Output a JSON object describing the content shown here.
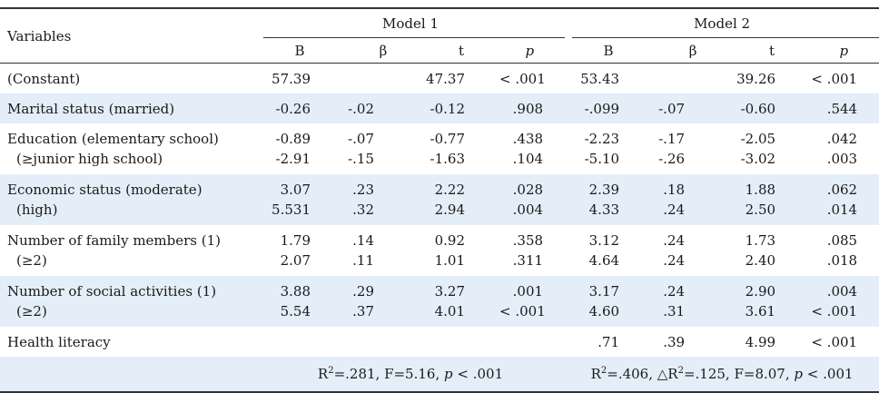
{
  "table": {
    "variables_header": "Variables",
    "models": [
      "Model 1",
      "Model 2"
    ],
    "column_labels": [
      "B",
      "β",
      "t",
      "p"
    ],
    "rows": [
      {
        "labels": [
          "(Constant)"
        ],
        "m1": {
          "B": [
            "57.39"
          ],
          "beta": [
            ""
          ],
          "t": [
            "47.37"
          ],
          "p": [
            "< .001"
          ]
        },
        "m2": {
          "B": [
            "53.43"
          ],
          "beta": [
            ""
          ],
          "t": [
            "39.26"
          ],
          "p": [
            "< .001"
          ]
        }
      },
      {
        "labels": [
          "Marital status (married)"
        ],
        "m1": {
          "B": [
            "-0.26"
          ],
          "beta": [
            "-.02"
          ],
          "t": [
            "-0.12"
          ],
          "p": [
            ".908"
          ]
        },
        "m2": {
          "B": [
            "-.099"
          ],
          "beta": [
            "-.07"
          ],
          "t": [
            "-0.60"
          ],
          "p": [
            ".544"
          ]
        }
      },
      {
        "labels": [
          "Education (elementary school)",
          "(≥junior high school)"
        ],
        "m1": {
          "B": [
            "-0.89",
            "-2.91"
          ],
          "beta": [
            "-.07",
            "-.15"
          ],
          "t": [
            "-0.77",
            "-1.63"
          ],
          "p": [
            ".438",
            ".104"
          ]
        },
        "m2": {
          "B": [
            "-2.23",
            "-5.10"
          ],
          "beta": [
            "-.17",
            "-.26"
          ],
          "t": [
            "-2.05",
            "-3.02"
          ],
          "p": [
            ".042",
            ".003"
          ]
        }
      },
      {
        "labels": [
          "Economic status (moderate)",
          "(high)"
        ],
        "m1": {
          "B": [
            "3.07",
            "5.531"
          ],
          "beta": [
            ".23",
            ".32"
          ],
          "t": [
            "2.22",
            "2.94"
          ],
          "p": [
            ".028",
            ".004"
          ]
        },
        "m2": {
          "B": [
            "2.39",
            "4.33"
          ],
          "beta": [
            ".18",
            ".24"
          ],
          "t": [
            "1.88",
            "2.50"
          ],
          "p": [
            ".062",
            ".014"
          ]
        }
      },
      {
        "labels": [
          "Number of family members (1)",
          "(≥2)"
        ],
        "m1": {
          "B": [
            "1.79",
            "2.07"
          ],
          "beta": [
            ".14",
            ".11"
          ],
          "t": [
            "0.92",
            "1.01"
          ],
          "p": [
            ".358",
            ".311"
          ]
        },
        "m2": {
          "B": [
            "3.12",
            "4.64"
          ],
          "beta": [
            ".24",
            ".24"
          ],
          "t": [
            "1.73",
            "2.40"
          ],
          "p": [
            ".085",
            ".018"
          ]
        }
      },
      {
        "labels": [
          "Number of social activities (1)",
          "(≥2)"
        ],
        "m1": {
          "B": [
            "3.88",
            "5.54"
          ],
          "beta": [
            ".29",
            ".37"
          ],
          "t": [
            "3.27",
            "4.01"
          ],
          "p": [
            ".001",
            "< .001"
          ]
        },
        "m2": {
          "B": [
            "3.17",
            "4.60"
          ],
          "beta": [
            ".24",
            ".31"
          ],
          "t": [
            "2.90",
            "3.61"
          ],
          "p": [
            ".004",
            "< .001"
          ]
        }
      },
      {
        "labels": [
          "Health literacy"
        ],
        "m1": {
          "B": [
            ""
          ],
          "beta": [
            ""
          ],
          "t": [
            ""
          ],
          "p": [
            ""
          ]
        },
        "m2": {
          "B": [
            ".71"
          ],
          "beta": [
            ".39"
          ],
          "t": [
            "4.99"
          ],
          "p": [
            "< .001"
          ]
        }
      }
    ],
    "footer": {
      "model1": {
        "r2_label": "R",
        "r2_value": "=.281,  F=5.16,",
        "p_label": "p",
        "p_value": "< .001"
      },
      "model2": {
        "r2_label": "R",
        "r2_value": "=.406,  △R",
        "delta_value": "=.125,  F=8.07,",
        "p_label": "p",
        "p_value": "< .001"
      }
    }
  }
}
